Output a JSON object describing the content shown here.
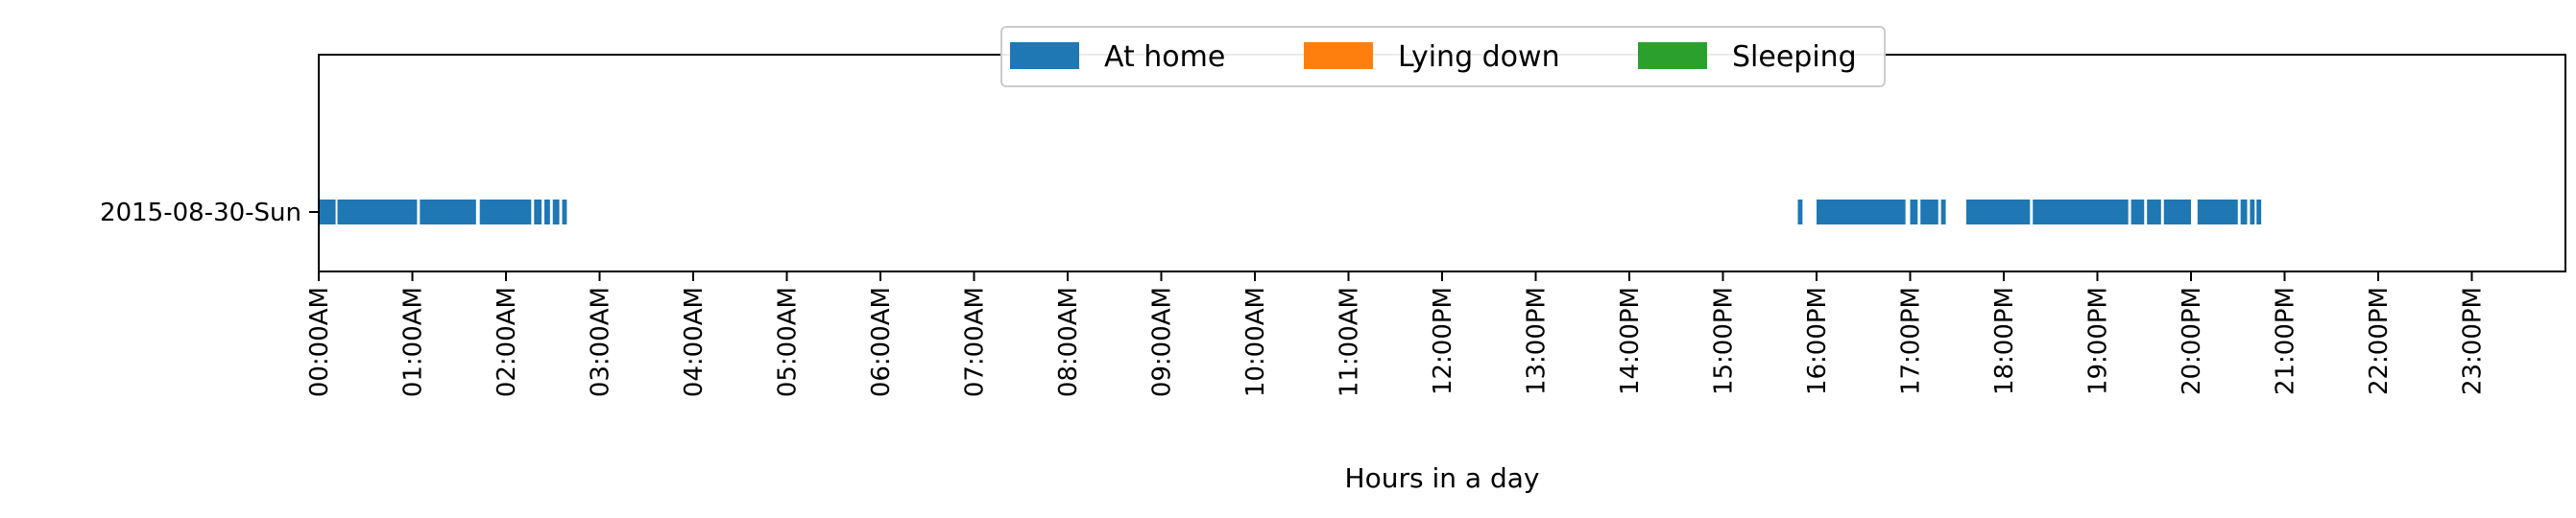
{
  "chart_data": {
    "type": "timeline",
    "title": "",
    "xlabel": "Hours in a day",
    "ylabel": "",
    "xlim": [
      0,
      24
    ],
    "grid": false,
    "legend_placement": "upper-center",
    "rows": [
      "2015-08-30-Sun"
    ],
    "x_ticks": [
      {
        "value": 0,
        "label": "00:00AM"
      },
      {
        "value": 1,
        "label": "01:00AM"
      },
      {
        "value": 2,
        "label": "02:00AM"
      },
      {
        "value": 3,
        "label": "03:00AM"
      },
      {
        "value": 4,
        "label": "04:00AM"
      },
      {
        "value": 5,
        "label": "05:00AM"
      },
      {
        "value": 6,
        "label": "06:00AM"
      },
      {
        "value": 7,
        "label": "07:00AM"
      },
      {
        "value": 8,
        "label": "08:00AM"
      },
      {
        "value": 9,
        "label": "09:00AM"
      },
      {
        "value": 10,
        "label": "10:00AM"
      },
      {
        "value": 11,
        "label": "11:00AM"
      },
      {
        "value": 12,
        "label": "12:00PM"
      },
      {
        "value": 13,
        "label": "13:00PM"
      },
      {
        "value": 14,
        "label": "14:00PM"
      },
      {
        "value": 15,
        "label": "15:00PM"
      },
      {
        "value": 16,
        "label": "16:00PM"
      },
      {
        "value": 17,
        "label": "17:00PM"
      },
      {
        "value": 18,
        "label": "18:00PM"
      },
      {
        "value": 19,
        "label": "19:00PM"
      },
      {
        "value": 20,
        "label": "20:00PM"
      },
      {
        "value": 21,
        "label": "21:00PM"
      },
      {
        "value": 22,
        "label": "22:00PM"
      },
      {
        "value": 23,
        "label": "23:00PM"
      }
    ],
    "series": [
      {
        "name": "At home",
        "color": "#1f77b4",
        "intervals": [
          [
            "2015-08-30-Sun",
            0.0,
            0.18
          ],
          [
            "2015-08-30-Sun",
            0.2,
            1.05
          ],
          [
            "2015-08-30-Sun",
            1.08,
            1.68
          ],
          [
            "2015-08-30-Sun",
            1.72,
            2.27
          ],
          [
            "2015-08-30-Sun",
            2.3,
            2.38
          ],
          [
            "2015-08-30-Sun",
            2.41,
            2.47
          ],
          [
            "2015-08-30-Sun",
            2.5,
            2.57
          ],
          [
            "2015-08-30-Sun",
            2.6,
            2.65
          ],
          [
            "2015-08-30-Sun",
            15.8,
            15.85
          ],
          [
            "2015-08-30-Sun",
            16.0,
            16.95
          ],
          [
            "2015-08-30-Sun",
            17.0,
            17.08
          ],
          [
            "2015-08-30-Sun",
            17.11,
            17.3
          ],
          [
            "2015-08-30-Sun",
            17.33,
            17.38
          ],
          [
            "2015-08-30-Sun",
            17.6,
            18.28
          ],
          [
            "2015-08-30-Sun",
            18.31,
            19.33
          ],
          [
            "2015-08-30-Sun",
            19.36,
            19.5
          ],
          [
            "2015-08-30-Sun",
            19.53,
            19.68
          ],
          [
            "2015-08-30-Sun",
            19.71,
            20.0
          ],
          [
            "2015-08-30-Sun",
            20.07,
            20.5
          ],
          [
            "2015-08-30-Sun",
            20.53,
            20.6
          ],
          [
            "2015-08-30-Sun",
            20.63,
            20.68
          ],
          [
            "2015-08-30-Sun",
            20.7,
            20.75
          ]
        ]
      },
      {
        "name": "Lying down",
        "color": "#ff7f0e",
        "intervals": []
      },
      {
        "name": "Sleeping",
        "color": "#2ca02c",
        "intervals": []
      }
    ]
  }
}
